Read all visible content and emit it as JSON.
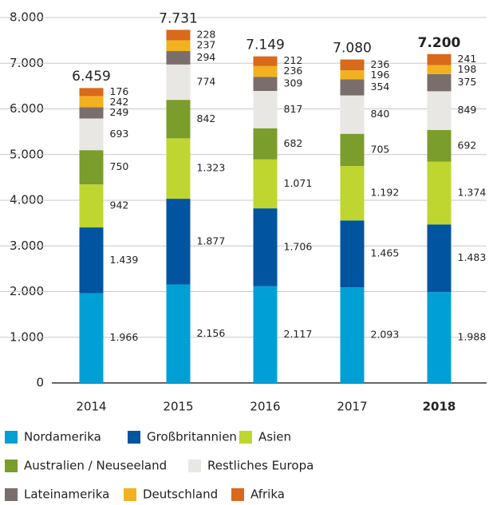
{
  "chart_data": {
    "type": "bar",
    "stacked": true,
    "categories": [
      "2014",
      "2015",
      "2016",
      "2017",
      "2018"
    ],
    "series": [
      {
        "name": "Nordamerika",
        "color": "#00a0d6",
        "values": [
          1966,
          2156,
          2117,
          2093,
          1988
        ],
        "value_labels": [
          "1.966",
          "2.156",
          "2.117",
          "2.093",
          "1.988"
        ]
      },
      {
        "name": "Großbritannien",
        "color": "#0054a0",
        "values": [
          1439,
          1877,
          1706,
          1465,
          1483
        ],
        "value_labels": [
          "1.439",
          "1.877",
          "1.706",
          "1.465",
          "1.483"
        ]
      },
      {
        "name": "Asien",
        "color": "#bfd630",
        "values": [
          942,
          1323,
          1071,
          1192,
          1374
        ],
        "value_labels": [
          "942",
          "1.323",
          "1.071",
          "1.192",
          "1.374"
        ]
      },
      {
        "name": "Australien / Neuseeland",
        "color": "#7a9d2b",
        "values": [
          750,
          842,
          682,
          705,
          692
        ],
        "value_labels": [
          "750",
          "842",
          "682",
          "705",
          "692"
        ]
      },
      {
        "name": "Restliches Europa",
        "color": "#e9e7e4",
        "values": [
          693,
          774,
          817,
          840,
          849
        ],
        "value_labels": [
          "693",
          "774",
          "817",
          "840",
          "849"
        ]
      },
      {
        "name": "Lateinamerika",
        "color": "#7a6e6c",
        "values": [
          249,
          294,
          309,
          354,
          375
        ],
        "value_labels": [
          "249",
          "294",
          "309",
          "354",
          "375"
        ]
      },
      {
        "name": "Deutschland",
        "color": "#f2b11f",
        "values": [
          242,
          237,
          236,
          196,
          198
        ],
        "value_labels": [
          "242",
          "237",
          "236",
          "196",
          "198"
        ]
      },
      {
        "name": "Afrika",
        "color": "#d9691b",
        "values": [
          176,
          228,
          212,
          236,
          241
        ],
        "value_labels": [
          "176",
          "228",
          "212",
          "236",
          "241"
        ]
      }
    ],
    "totals": {
      "values": [
        6459,
        7731,
        7149,
        7080,
        7200
      ],
      "value_labels": [
        "6.459",
        "7.731",
        "7.149",
        "7.080",
        "7.200"
      ]
    },
    "ylim": [
      0,
      8000
    ],
    "yticks": [
      0,
      {
        "value": 1000,
        "label": "1.000"
      },
      {
        "value": 2000,
        "label": "2.000"
      },
      {
        "value": 3000,
        "label": "3.000"
      },
      {
        "value": 4000,
        "label": "4.000"
      },
      {
        "value": 5000,
        "label": "5.000"
      },
      {
        "value": 6000,
        "label": "6.000"
      },
      {
        "value": 7000,
        "label": "7.000"
      },
      {
        "value": 8000,
        "label": "8.000"
      }
    ],
    "grid": true
  }
}
